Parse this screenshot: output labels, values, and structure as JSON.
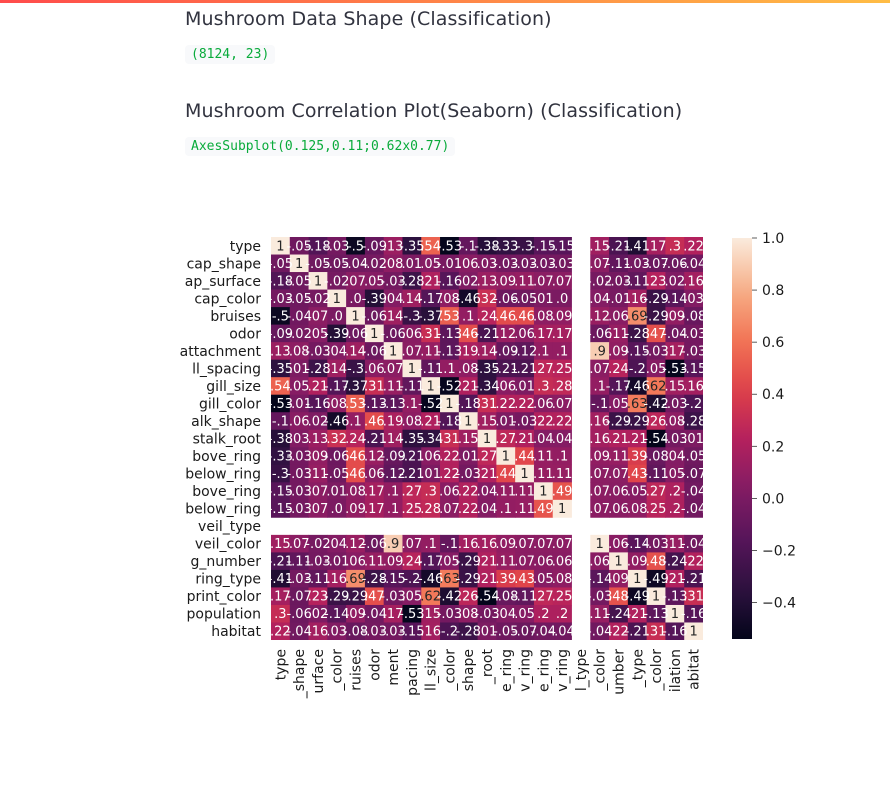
{
  "page": {
    "heading1": "Mushroom Data Shape (Classification)",
    "shape_text": "(8124, 23)",
    "heading2": "Mushroom Correlation Plot(Seaborn) (Classification)",
    "axes_text": "AxesSubplot(0.125,0.11;0.62x0.77)"
  },
  "chart_data": {
    "type": "heatmap",
    "row_labels": [
      "type",
      "cap_shape",
      "cap_surface",
      "cap_color",
      "bruises",
      "odor",
      "gill_attachment",
      "gill_spacing",
      "gill_size",
      "gill_color",
      "stalk_shape",
      "stalk_root",
      "stalk_surface_above_ring",
      "stalk_surface_below_ring",
      "stalk_color_above_ring",
      "stalk_color_below_ring",
      "veil_type",
      "veil_color",
      "ring_number",
      "ring_type",
      "spore_print_color",
      "population",
      "habitat"
    ],
    "row_labels_shown": [
      "type",
      "cap_shape",
      "ap_surface",
      "cap_color",
      "bruises",
      "odor",
      "attachment",
      "ll_spacing",
      "gill_size",
      "gill_color",
      "alk_shape",
      "stalk_root",
      "bove_ring",
      "below_ring",
      "bove_ring",
      "below_ring",
      "veil_type",
      "veil_color",
      "g_number",
      "ring_type",
      "print_color",
      "population",
      "habitat"
    ],
    "col_labels_shown": [
      "type",
      "_shape",
      "urface",
      "_color",
      "ruises",
      "odor",
      "ment",
      "pacing",
      "ll_size",
      "_color",
      "shape",
      "_root",
      "e_ring",
      "v_ring",
      "e_ring",
      "v_ring",
      "l_type",
      "_color",
      "umber",
      "_type",
      "_color",
      "ilation",
      "abitat"
    ],
    "colorbar_ticks": [
      1.0,
      0.8,
      0.6,
      0.4,
      0.2,
      0.0,
      -0.2,
      -0.4
    ],
    "colorbar_tick_labels": [
      "1.0",
      "0.8",
      "0.6",
      "0.4",
      "0.2",
      "0.0",
      "−0.2",
      "−0.4"
    ],
    "vmin": -0.54,
    "vmax": 1.0,
    "annotated": true,
    "missing_index": 16,
    "matrix": [
      [
        1,
        -0.05,
        -0.18,
        -0.03,
        -0.5,
        -0.09,
        0.13,
        -0.35,
        0.54,
        -0.53,
        -0.1,
        -0.38,
        -0.33,
        -0.3,
        -0.15,
        -0.15,
        null,
        0.15,
        -0.21,
        -0.41,
        0.17,
        0.3,
        0.22
      ],
      [
        -0.05,
        1,
        -0.05,
        -0.05,
        -0.04,
        -0.02,
        0.08,
        0.01,
        0.05,
        -0.01,
        0.06,
        0.03,
        -0.03,
        -0.03,
        -0.03,
        -0.03,
        null,
        0.07,
        -0.11,
        -0.03,
        -0.07,
        -0.06,
        -0.04
      ],
      [
        -0.18,
        -0.05,
        1,
        -0.02,
        0.07,
        0.05,
        -0.03,
        -0.28,
        0.21,
        -0.16,
        0.02,
        0.13,
        0.09,
        0.11,
        0.07,
        0.07,
        null,
        -0.02,
        -0.03,
        -0.11,
        0.23,
        0.02,
        0.16
      ],
      [
        -0.03,
        -0.05,
        -0.02,
        1,
        0,
        -0.39,
        0.04,
        0.14,
        -0.17,
        0.08,
        -0.46,
        0.32,
        -0.06,
        -0.05,
        0.01,
        0,
        null,
        0.04,
        -0.01,
        0.16,
        -0.29,
        -0.14,
        0.03
      ],
      [
        -0.5,
        -0.04,
        0.07,
        0,
        1,
        -0.06,
        0.14,
        -0.3,
        -0.37,
        0.53,
        0.1,
        0.24,
        0.46,
        0.46,
        0.08,
        0.09,
        null,
        0.12,
        0.06,
        0.69,
        -0.29,
        0.09,
        -0.08
      ],
      [
        -0.09,
        -0.02,
        0.05,
        -0.39,
        -0.06,
        1,
        -0.06,
        0.06,
        0.31,
        -0.13,
        0.46,
        -0.21,
        0.12,
        0.06,
        0.17,
        0.17,
        null,
        -0.06,
        0.11,
        -0.28,
        0.47,
        -0.04,
        -0.03
      ],
      [
        0.13,
        0.08,
        -0.03,
        0.04,
        0.14,
        -0.06,
        1,
        0.07,
        0.11,
        -0.13,
        0.19,
        0.14,
        -0.09,
        -0.12,
        0.1,
        0.1,
        null,
        0.9,
        0.09,
        -0.15,
        -0.03,
        0.17,
        -0.03
      ],
      [
        -0.35,
        0.01,
        -0.28,
        0.14,
        -0.3,
        0.06,
        0.07,
        1,
        -0.11,
        0.1,
        0.08,
        -0.35,
        -0.21,
        -0.21,
        0.27,
        0.25,
        null,
        0.07,
        0.24,
        -0.2,
        0.05,
        -0.53,
        -0.15
      ],
      [
        0.54,
        0.05,
        0.21,
        -0.17,
        -0.37,
        0.31,
        0.11,
        -0.11,
        1,
        -0.52,
        0.21,
        -0.34,
        0.06,
        0.01,
        0.3,
        0.28,
        null,
        0.1,
        -0.17,
        -0.46,
        0.62,
        0.15,
        0.16
      ],
      [
        -0.53,
        -0.01,
        -0.16,
        0.08,
        0.53,
        -0.13,
        -0.13,
        0.1,
        -0.52,
        1,
        -0.18,
        0.31,
        0.22,
        0.22,
        0.06,
        0.07,
        null,
        -0.1,
        0.05,
        0.63,
        -0.42,
        -0.03,
        -0.2
      ],
      [
        -0.1,
        0.06,
        0.02,
        -0.46,
        0.1,
        0.46,
        0.19,
        0.08,
        0.21,
        -0.18,
        1,
        0.15,
        0.01,
        -0.03,
        0.22,
        0.22,
        null,
        0.16,
        -0.29,
        -0.29,
        0.26,
        0.08,
        -0.28
      ],
      [
        -0.38,
        0.03,
        0.13,
        0.32,
        0.24,
        -0.21,
        0.14,
        -0.35,
        -0.34,
        0.31,
        0.15,
        1,
        0.27,
        0.21,
        0.04,
        0.04,
        null,
        0.16,
        0.21,
        0.21,
        -0.54,
        -0.03,
        0.01
      ],
      [
        -0.33,
        -0.03,
        0.09,
        -0.06,
        0.46,
        0.12,
        -0.09,
        -0.21,
        0.06,
        0.22,
        0.01,
        0.27,
        1,
        0.44,
        0.11,
        0.1,
        null,
        0.09,
        0.11,
        0.39,
        -0.08,
        0.04,
        -0.05
      ],
      [
        -0.3,
        -0.03,
        0.11,
        -0.05,
        0.46,
        0.06,
        -0.12,
        -0.21,
        0.01,
        0.22,
        -0.03,
        0.21,
        0.44,
        1,
        0.11,
        0.11,
        null,
        0.07,
        0.07,
        0.43,
        -0.11,
        0.05,
        -0.07
      ],
      [
        -0.15,
        -0.03,
        0.07,
        0.01,
        0.08,
        0.17,
        0.1,
        0.27,
        0.3,
        0.06,
        0.22,
        0.04,
        0.11,
        0.11,
        1,
        0.49,
        null,
        0.07,
        0.06,
        0.05,
        0.27,
        0.2,
        -0.04
      ],
      [
        -0.15,
        -0.03,
        0.07,
        0,
        0.09,
        0.17,
        0.1,
        0.25,
        0.28,
        0.07,
        0.22,
        0.04,
        0.1,
        0.11,
        0.49,
        1,
        null,
        0.07,
        0.06,
        0.08,
        0.25,
        0.2,
        -0.04
      ],
      [
        null,
        null,
        null,
        null,
        null,
        null,
        null,
        null,
        null,
        null,
        null,
        null,
        null,
        null,
        null,
        null,
        null,
        null,
        null,
        null,
        null,
        null,
        null
      ],
      [
        0.15,
        0.07,
        -0.02,
        0.04,
        0.12,
        -0.06,
        0.9,
        0.07,
        0.1,
        -0.1,
        0.16,
        0.16,
        0.09,
        0.07,
        0.07,
        0.07,
        null,
        1,
        0.06,
        -0.14,
        -0.03,
        0.11,
        -0.04
      ],
      [
        -0.21,
        -0.11,
        -0.03,
        -0.01,
        0.06,
        0.11,
        0.09,
        0.24,
        -0.17,
        0.05,
        -0.29,
        0.21,
        0.11,
        0.07,
        0.06,
        0.06,
        null,
        0.06,
        1,
        0.09,
        0.48,
        -0.24,
        0.22
      ],
      [
        -0.41,
        -0.03,
        -0.11,
        0.16,
        0.69,
        -0.28,
        -0.15,
        -0.2,
        -0.46,
        0.63,
        -0.29,
        0.21,
        0.39,
        0.43,
        0.05,
        0.08,
        null,
        -0.14,
        0.09,
        1,
        -0.49,
        0.21,
        -0.21
      ],
      [
        0.17,
        -0.07,
        0.23,
        -0.29,
        -0.29,
        0.47,
        -0.03,
        0.05,
        0.62,
        -0.42,
        0.26,
        -0.54,
        -0.08,
        -0.11,
        0.27,
        0.25,
        null,
        -0.03,
        0.48,
        -0.49,
        1,
        -0.13,
        0.31
      ],
      [
        0.3,
        -0.06,
        0.02,
        -0.14,
        0.09,
        -0.04,
        0.17,
        -0.53,
        0.15,
        -0.03,
        0.08,
        -0.03,
        0.04,
        0.05,
        0.2,
        0.2,
        null,
        0.11,
        -0.24,
        0.21,
        -0.13,
        1,
        -0.16
      ],
      [
        0.22,
        -0.04,
        0.16,
        0.03,
        -0.08,
        -0.03,
        -0.03,
        -0.15,
        0.16,
        -0.2,
        -0.28,
        0.01,
        -0.05,
        -0.07,
        -0.04,
        -0.04,
        null,
        -0.04,
        0.22,
        -0.21,
        0.31,
        -0.16,
        1
      ]
    ]
  }
}
